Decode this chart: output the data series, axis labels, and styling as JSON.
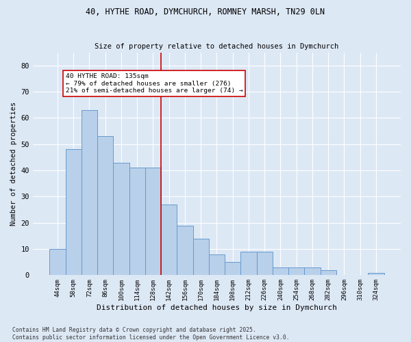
{
  "title_line1": "40, HYTHE ROAD, DYMCHURCH, ROMNEY MARSH, TN29 0LN",
  "title_line2": "Size of property relative to detached houses in Dymchurch",
  "xlabel": "Distribution of detached houses by size in Dymchurch",
  "ylabel": "Number of detached properties",
  "categories": [
    "44sqm",
    "58sqm",
    "72sqm",
    "86sqm",
    "100sqm",
    "114sqm",
    "128sqm",
    "142sqm",
    "156sqm",
    "170sqm",
    "184sqm",
    "198sqm",
    "212sqm",
    "226sqm",
    "240sqm",
    "254sqm",
    "268sqm",
    "282sqm",
    "296sqm",
    "310sqm",
    "324sqm"
  ],
  "values": [
    10,
    48,
    63,
    53,
    43,
    41,
    41,
    27,
    19,
    14,
    8,
    5,
    9,
    9,
    3,
    3,
    3,
    2,
    0,
    0,
    1
  ],
  "bar_color": "#b8d0ea",
  "bar_edge_color": "#6699cc",
  "background_color": "#dde8f5",
  "grid_color": "#ffffff",
  "vline_color": "#cc0000",
  "vline_index": 7,
  "annotation_title": "40 HYTHE ROAD: 135sqm",
  "annotation_line2": "← 79% of detached houses are smaller (276)",
  "annotation_line3": "21% of semi-detached houses are larger (74) →",
  "annotation_box_color": "#ffffff",
  "annotation_box_edge_color": "#cc0000",
  "ylim": [
    0,
    85
  ],
  "yticks": [
    0,
    10,
    20,
    30,
    40,
    50,
    60,
    70,
    80
  ],
  "footer_line1": "Contains HM Land Registry data © Crown copyright and database right 2025.",
  "footer_line2": "Contains public sector information licensed under the Open Government Licence v3.0."
}
